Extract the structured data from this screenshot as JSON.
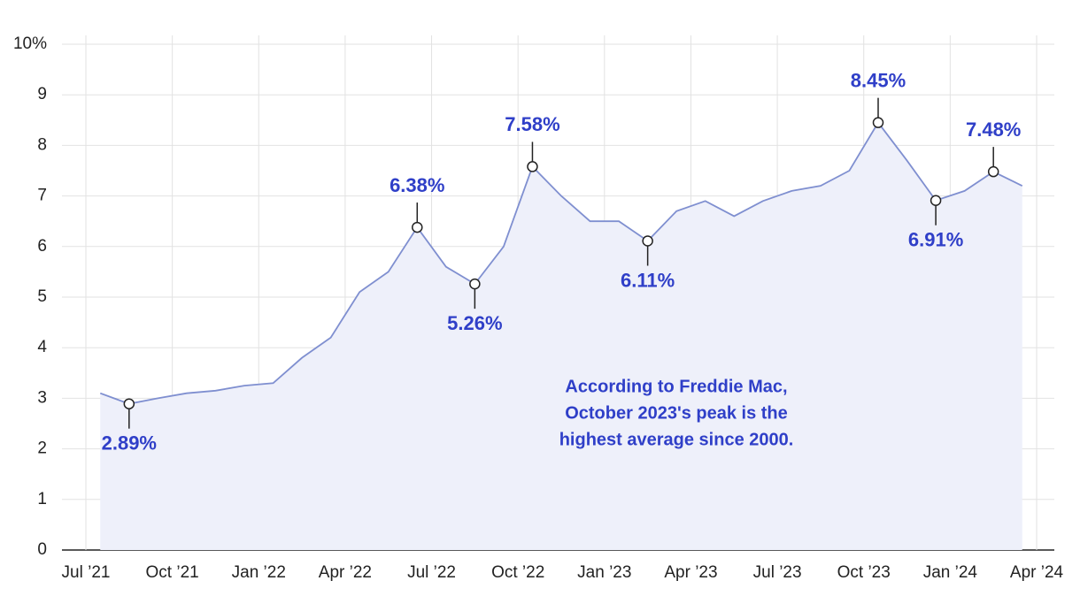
{
  "chart_data": {
    "type": "area",
    "x": [
      "2021-07",
      "2021-08",
      "2021-09",
      "2021-10",
      "2021-11",
      "2021-12",
      "2022-01",
      "2022-02",
      "2022-03",
      "2022-04",
      "2022-05",
      "2022-06",
      "2022-07",
      "2022-08",
      "2022-09",
      "2022-10",
      "2022-11",
      "2022-12",
      "2023-01",
      "2023-02",
      "2023-03",
      "2023-04",
      "2023-05",
      "2023-06",
      "2023-07",
      "2023-08",
      "2023-09",
      "2023-10",
      "2023-11",
      "2023-12",
      "2024-01",
      "2024-02",
      "2024-03"
    ],
    "values": [
      3.1,
      2.89,
      3.0,
      3.1,
      3.15,
      3.25,
      3.3,
      3.8,
      4.2,
      5.1,
      5.5,
      6.38,
      5.6,
      5.26,
      6.0,
      7.58,
      7.0,
      6.5,
      6.5,
      6.11,
      6.7,
      6.9,
      6.6,
      6.9,
      7.1,
      7.2,
      7.5,
      8.45,
      7.7,
      6.91,
      7.1,
      7.48,
      7.2
    ],
    "value_labels": [
      null,
      "2.89%",
      null,
      null,
      null,
      null,
      null,
      null,
      null,
      null,
      null,
      "6.38%",
      null,
      "5.26%",
      null,
      "7.58%",
      null,
      null,
      null,
      "6.11%",
      null,
      null,
      null,
      null,
      null,
      null,
      null,
      "8.45%",
      null,
      "6.91%",
      null,
      "7.48%",
      null
    ],
    "color": "#7f8fd0",
    "fill": "#eef0fa",
    "label_color": "#2f3fc8",
    "xlim": [
      "2021-07",
      "2024-04"
    ],
    "xticks": [
      {
        "value": "2021-07",
        "label": "Jul ’21"
      },
      {
        "value": "2021-10",
        "label": "Oct ’21"
      },
      {
        "value": "2022-01",
        "label": "Jan ’22"
      },
      {
        "value": "2022-04",
        "label": "Apr ’22"
      },
      {
        "value": "2022-07",
        "label": "Jul ’22"
      },
      {
        "value": "2022-10",
        "label": "Oct ’22"
      },
      {
        "value": "2023-01",
        "label": "Jan ’23"
      },
      {
        "value": "2023-04",
        "label": "Apr ’23"
      },
      {
        "value": "2023-07",
        "label": "Jul ’23"
      },
      {
        "value": "2023-10",
        "label": "Oct ’23"
      },
      {
        "value": "2024-01",
        "label": "Jan ’24"
      },
      {
        "value": "2024-04",
        "label": "Apr ’24"
      }
    ],
    "ylim": [
      0,
      10
    ],
    "yticks": [
      0,
      1,
      2,
      3,
      4,
      5,
      6,
      7,
      8,
      9,
      {
        "value": 10,
        "label": "10%"
      }
    ],
    "grid": true,
    "annotation": [
      "According to Freddie Mac,",
      "October 2023's peak is the",
      "highest average since 2000."
    ]
  }
}
